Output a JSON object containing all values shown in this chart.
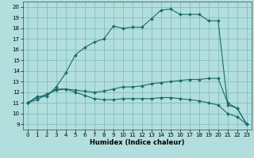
{
  "xlabel": "Humidex (Indice chaleur)",
  "background_color": "#b2dede",
  "grid_color": "#7ab8b8",
  "line_color": "#1a6b6b",
  "marker_color": "#1a6b6b",
  "xlim": [
    -0.5,
    23.5
  ],
  "ylim": [
    8.5,
    20.5
  ],
  "yticks": [
    9,
    10,
    11,
    12,
    13,
    14,
    15,
    16,
    17,
    18,
    19,
    20
  ],
  "xticks": [
    0,
    1,
    2,
    3,
    4,
    5,
    6,
    7,
    8,
    9,
    10,
    11,
    12,
    13,
    14,
    15,
    16,
    17,
    18,
    19,
    20,
    21,
    22,
    23
  ],
  "series": [
    {
      "x": [
        0,
        1,
        2,
        3,
        4,
        5,
        6,
        7,
        8,
        9,
        10,
        11,
        12,
        13,
        14,
        15,
        16,
        17,
        18,
        19,
        20,
        21,
        22,
        23
      ],
      "y": [
        11.0,
        11.6,
        11.6,
        12.5,
        13.8,
        15.5,
        16.2,
        16.7,
        17.0,
        18.2,
        18.0,
        18.1,
        18.1,
        18.9,
        19.7,
        19.8,
        19.3,
        19.3,
        19.3,
        18.7,
        18.7,
        10.8,
        10.5,
        9.0
      ]
    },
    {
      "x": [
        0,
        1,
        2,
        3,
        4,
        5,
        6,
        7,
        8,
        9,
        10,
        11,
        12,
        13,
        14,
        15,
        16,
        17,
        18,
        19,
        20,
        21,
        22,
        23
      ],
      "y": [
        11.0,
        11.3,
        11.8,
        12.2,
        12.3,
        12.2,
        12.1,
        12.0,
        12.1,
        12.3,
        12.5,
        12.5,
        12.6,
        12.8,
        12.9,
        13.0,
        13.1,
        13.2,
        13.2,
        13.3,
        13.3,
        11.0,
        10.5,
        9.0
      ]
    },
    {
      "x": [
        0,
        1,
        2,
        3,
        4,
        5,
        6,
        7,
        8,
        9,
        10,
        11,
        12,
        13,
        14,
        15,
        16,
        17,
        18,
        19,
        20,
        21,
        22,
        23
      ],
      "y": [
        11.0,
        11.5,
        11.8,
        12.3,
        12.3,
        12.0,
        11.7,
        11.4,
        11.3,
        11.3,
        11.4,
        11.4,
        11.4,
        11.4,
        11.5,
        11.5,
        11.4,
        11.3,
        11.2,
        11.0,
        10.8,
        10.0,
        9.7,
        9.0
      ]
    }
  ]
}
